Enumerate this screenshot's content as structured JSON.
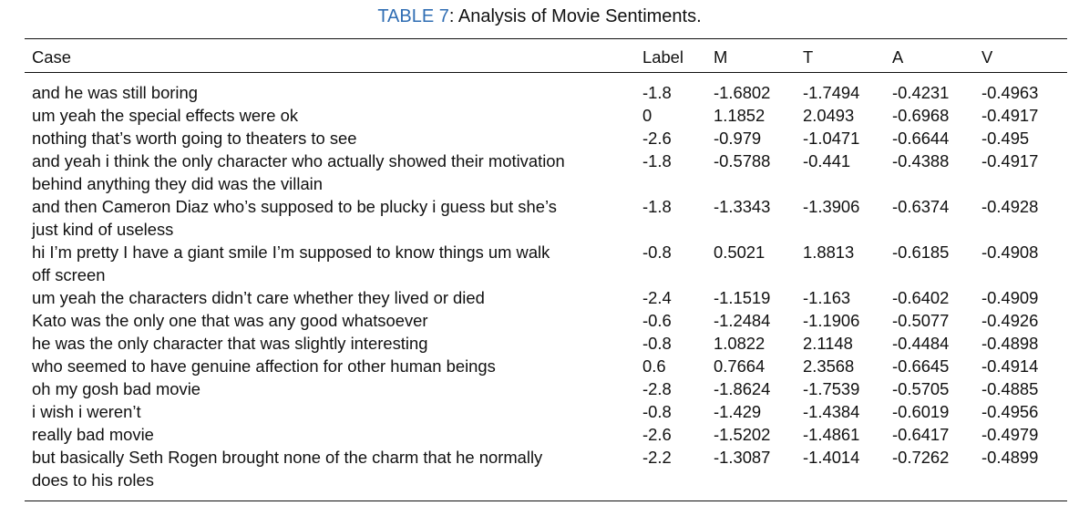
{
  "caption": {
    "tag": "TABLE 7",
    "separator": ":",
    "text": " Analysis of Movie Sentiments."
  },
  "columns": [
    "Case",
    "Label",
    "M",
    "T",
    "A",
    "V"
  ],
  "rows": [
    {
      "case": "and he was still boring",
      "label": "-1.8",
      "m": "-1.6802",
      "t": "-1.7494",
      "a": "-0.4231",
      "v": "-0.4963"
    },
    {
      "case": "um yeah the special effects were ok",
      "label": "0",
      "m": "1.1852",
      "t": "2.0493",
      "a": "-0.6968",
      "v": "-0.4917"
    },
    {
      "case": "nothing that’s worth going to theaters to see",
      "label": "-2.6",
      "m": "-0.979",
      "t": "-1.0471",
      "a": "-0.6644",
      "v": "-0.495"
    },
    {
      "case": "and yeah i think the only character who actually showed their motivation",
      "case2": "behind anything they did was the villain",
      "label": "-1.8",
      "m": "-0.5788",
      "t": "-0.441",
      "a": "-0.4388",
      "v": "-0.4917"
    },
    {
      "case": "and then Cameron Diaz who’s supposed to be plucky i guess but she’s",
      "case2": "just kind of useless",
      "label": "-1.8",
      "m": "-1.3343",
      "t": "-1.3906",
      "a": "-0.6374",
      "v": "-0.4928"
    },
    {
      "case": "hi I’m pretty I have a giant smile I’m supposed to know things um walk",
      "case2": "off screen",
      "label": "-0.8",
      "m": "0.5021",
      "t": "1.8813",
      "a": "-0.6185",
      "v": "-0.4908"
    },
    {
      "case": "um yeah the characters didn’t care whether they lived or died",
      "label": "-2.4",
      "m": "-1.1519",
      "t": "-1.163",
      "a": "-0.6402",
      "v": "-0.4909"
    },
    {
      "case": "Kato was the only one that was any good whatsoever",
      "label": "-0.6",
      "m": "-1.2484",
      "t": "-1.1906",
      "a": "-0.5077",
      "v": "-0.4926"
    },
    {
      "case": "he was the only character that was slightly interesting",
      "label": "-0.8",
      "m": "1.0822",
      "t": "2.1148",
      "a": "-0.4484",
      "v": "-0.4898"
    },
    {
      "case": "who seemed to have genuine affection for other human beings",
      "label": "0.6",
      "m": "0.7664",
      "t": "2.3568",
      "a": "-0.6645",
      "v": "-0.4914"
    },
    {
      "case": "oh my gosh bad movie",
      "label": "-2.8",
      "m": "-1.8624",
      "t": "-1.7539",
      "a": "-0.5705",
      "v": "-0.4885"
    },
    {
      "case": "i wish i weren’t",
      "label": "-0.8",
      "m": "-1.429",
      "t": "-1.4384",
      "a": "-0.6019",
      "v": "-0.4956"
    },
    {
      "case": "really bad movie",
      "label": "-2.6",
      "m": "-1.5202",
      "t": "-1.4861",
      "a": "-0.6417",
      "v": "-0.4979"
    },
    {
      "case": "but basically Seth Rogen brought none of the charm that he normally",
      "case2": "does to his roles",
      "label": "-2.2",
      "m": "-1.3087",
      "t": "-1.4014",
      "a": "-0.7262",
      "v": "-0.4899"
    }
  ],
  "colors": {
    "caption_tag": "#2f6db3",
    "text": "#111111",
    "rule": "#111111"
  }
}
